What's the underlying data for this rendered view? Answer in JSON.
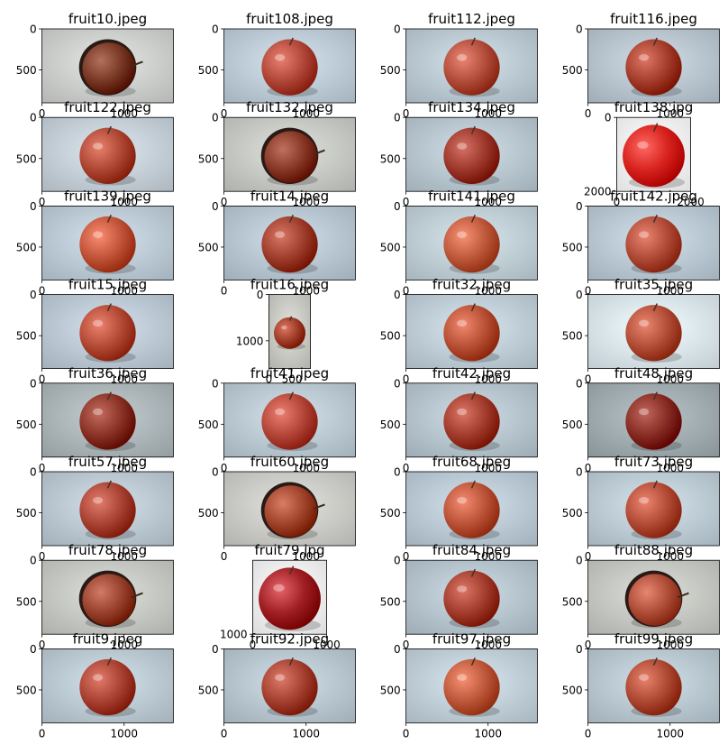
{
  "chart_data": {
    "type": "image-grid",
    "rows": 8,
    "cols": 4,
    "colors": {
      "background": "#ffffff",
      "axis": "#000000"
    },
    "panels": [
      {
        "title": "fruit10.jpeg",
        "width": 1600,
        "height": 900,
        "xticks": [
          0,
          1000
        ],
        "yticks": [
          0,
          500
        ],
        "bg": "#c9ccc8",
        "apple": "#7a3a26",
        "variant": "dark"
      },
      {
        "title": "fruit108.jpeg",
        "width": 1600,
        "height": 900,
        "xticks": [
          0,
          1000
        ],
        "yticks": [
          0,
          500
        ],
        "bg": "#b9c8d2",
        "apple": "#b2493a",
        "variant": "normal"
      },
      {
        "title": "fruit112.jpeg",
        "width": 1600,
        "height": 900,
        "xticks": [
          0,
          1000
        ],
        "yticks": [
          0,
          500
        ],
        "bg": "#b8c6cf",
        "apple": "#b34f3c",
        "variant": "normal"
      },
      {
        "title": "fruit116.jpeg",
        "width": 1600,
        "height": 900,
        "xticks": [
          0,
          1000
        ],
        "yticks": [
          0,
          500
        ],
        "bg": "#b5c2cc",
        "apple": "#a8402f",
        "variant": "normal"
      },
      {
        "title": "fruit122.jpeg",
        "width": 1600,
        "height": 900,
        "xticks": [
          0,
          1000
        ],
        "yticks": [
          0,
          500
        ],
        "bg": "#c2ccd4",
        "apple": "#b04a36",
        "variant": "normal"
      },
      {
        "title": "fruit132.jpeg",
        "width": 1600,
        "height": 900,
        "xticks": [
          0,
          1000
        ],
        "yticks": [
          0,
          500
        ],
        "bg": "#c4c6c2",
        "apple": "#8a3a28",
        "variant": "dark"
      },
      {
        "title": "fruit134.jpeg",
        "width": 1600,
        "height": 900,
        "xticks": [
          0,
          1000
        ],
        "yticks": [
          0,
          500
        ],
        "bg": "#b5c3cc",
        "apple": "#9e3a2e",
        "variant": "normal"
      },
      {
        "title": "fruit138.jpg",
        "width": 2000,
        "height": 2000,
        "xticks": [
          0,
          2000
        ],
        "yticks": [
          0,
          2000
        ],
        "bg": "#f5f5f5",
        "apple": "#d8231e",
        "variant": "bright"
      },
      {
        "title": "fruit139.jpeg",
        "width": 1600,
        "height": 900,
        "xticks": [
          0,
          1000
        ],
        "yticks": [
          0,
          500
        ],
        "bg": "#b8c7d2",
        "apple": "#c2553a",
        "variant": "normal"
      },
      {
        "title": "fruit14.jpeg",
        "width": 1600,
        "height": 900,
        "xticks": [
          0,
          1000
        ],
        "yticks": [
          0,
          500
        ],
        "bg": "#b4c3ce",
        "apple": "#a2402f",
        "variant": "normal"
      },
      {
        "title": "fruit141.jpeg",
        "width": 1600,
        "height": 900,
        "xticks": [
          0,
          1000
        ],
        "yticks": [
          0,
          500
        ],
        "bg": "#bccbd2",
        "apple": "#c05b3e",
        "variant": "normal"
      },
      {
        "title": "fruit142.jpeg",
        "width": 1600,
        "height": 900,
        "xticks": [
          0,
          1000
        ],
        "yticks": [
          0,
          500
        ],
        "bg": "#b6c5cf",
        "apple": "#b24d39",
        "variant": "normal"
      },
      {
        "title": "fruit15.jpeg",
        "width": 1600,
        "height": 900,
        "xticks": [
          0,
          1000
        ],
        "yticks": [
          0,
          500
        ],
        "bg": "#b9c6d1",
        "apple": "#b54c38",
        "variant": "normal"
      },
      {
        "title": "fruit16.jpeg",
        "width": 900,
        "height": 1600,
        "xticks": [
          0,
          500
        ],
        "yticks": [
          0,
          1000
        ],
        "bg": "#c5c6c0",
        "apple": "#a3402c",
        "variant": "normal"
      },
      {
        "title": "fruit32.jpeg",
        "width": 1600,
        "height": 900,
        "xticks": [
          0,
          1000
        ],
        "yticks": [
          0,
          500
        ],
        "bg": "#bccad3",
        "apple": "#ba5238",
        "variant": "normal"
      },
      {
        "title": "fruit35.jpeg",
        "width": 1600,
        "height": 900,
        "xticks": [
          0,
          1000
        ],
        "yticks": [
          0,
          500
        ],
        "bg": "#d6e2e8",
        "apple": "#b4503a",
        "variant": "normal"
      },
      {
        "title": "fruit36.jpeg",
        "width": 1600,
        "height": 900,
        "xticks": [
          0,
          1000
        ],
        "yticks": [
          0,
          500
        ],
        "bg": "#a9b3b6",
        "apple": "#8c3528",
        "variant": "normal"
      },
      {
        "title": "fruit41.jpeg",
        "width": 1600,
        "height": 900,
        "xticks": [
          0,
          1000
        ],
        "yticks": [
          0,
          500
        ],
        "bg": "#b8c6d0",
        "apple": "#b5483a",
        "variant": "normal"
      },
      {
        "title": "fruit42.jpeg",
        "width": 1600,
        "height": 900,
        "xticks": [
          0,
          1000
        ],
        "yticks": [
          0,
          500
        ],
        "bg": "#b3c1ca",
        "apple": "#a43f30",
        "variant": "normal"
      },
      {
        "title": "fruit48.jpeg",
        "width": 1600,
        "height": 900,
        "xticks": [
          0,
          1000
        ],
        "yticks": [
          0,
          500
        ],
        "bg": "#9ea9ad",
        "apple": "#8a2f26",
        "variant": "normal"
      },
      {
        "title": "fruit57.jpeg",
        "width": 1600,
        "height": 900,
        "xticks": [
          0,
          1000
        ],
        "yticks": [
          0,
          500
        ],
        "bg": "#b8c5ce",
        "apple": "#ab4535",
        "variant": "normal"
      },
      {
        "title": "fruit60.jpeg",
        "width": 1600,
        "height": 900,
        "xticks": [
          0,
          1000
        ],
        "yticks": [
          0,
          500
        ],
        "bg": "#c7c8c3",
        "apple": "#a2462e",
        "variant": "dark"
      },
      {
        "title": "fruit68.jpeg",
        "width": 1600,
        "height": 900,
        "xticks": [
          0,
          1000
        ],
        "yticks": [
          0,
          500
        ],
        "bg": "#b7c6d0",
        "apple": "#bd553b",
        "variant": "normal"
      },
      {
        "title": "fruit73.jpeg",
        "width": 1600,
        "height": 900,
        "xticks": [
          0,
          1000
        ],
        "yticks": [
          0,
          500
        ],
        "bg": "#bac8d1",
        "apple": "#b44e39",
        "variant": "normal"
      },
      {
        "title": "fruit78.jpeg",
        "width": 1600,
        "height": 900,
        "xticks": [
          0,
          1000
        ],
        "yticks": [
          0,
          500
        ],
        "bg": "#c3c5c0",
        "apple": "#9b4430",
        "variant": "dark"
      },
      {
        "title": "fruit79.jpg",
        "width": 1000,
        "height": 1000,
        "xticks": [
          0,
          1000
        ],
        "yticks": [
          1000
        ],
        "bg": "#f2f2f2",
        "apple": "#a01f24",
        "variant": "bright"
      },
      {
        "title": "fruit84.jpeg",
        "width": 1600,
        "height": 900,
        "xticks": [
          0,
          1000
        ],
        "yticks": [
          0,
          500
        ],
        "bg": "#b3c1cb",
        "apple": "#a53f30",
        "variant": "normal"
      },
      {
        "title": "fruit88.jpeg",
        "width": 1600,
        "height": 900,
        "xticks": [
          0,
          1000
        ],
        "yticks": [
          0,
          500
        ],
        "bg": "#c2c4bf",
        "apple": "#b0503a",
        "variant": "dark"
      },
      {
        "title": "fruit9.jpeg",
        "width": 1600,
        "height": 900,
        "xticks": [
          0,
          1000
        ],
        "yticks": [
          0,
          500
        ],
        "bg": "#b8c6cf",
        "apple": "#ab4434",
        "variant": "normal"
      },
      {
        "title": "fruit92.jpeg",
        "width": 1600,
        "height": 900,
        "xticks": [
          0,
          1000
        ],
        "yticks": [
          0,
          500
        ],
        "bg": "#b5c3cc",
        "apple": "#a74333",
        "variant": "normal"
      },
      {
        "title": "fruit97.jpeg",
        "width": 1600,
        "height": 900,
        "xticks": [
          0,
          1000
        ],
        "yticks": [
          0,
          500
        ],
        "bg": "#bccbd4",
        "apple": "#c05a3c",
        "variant": "normal"
      },
      {
        "title": "fruit99.jpeg",
        "width": 1600,
        "height": 900,
        "xticks": [
          0,
          1000
        ],
        "yticks": [
          0,
          500
        ],
        "bg": "#b6c4cd",
        "apple": "#b04b35",
        "variant": "normal"
      }
    ]
  }
}
